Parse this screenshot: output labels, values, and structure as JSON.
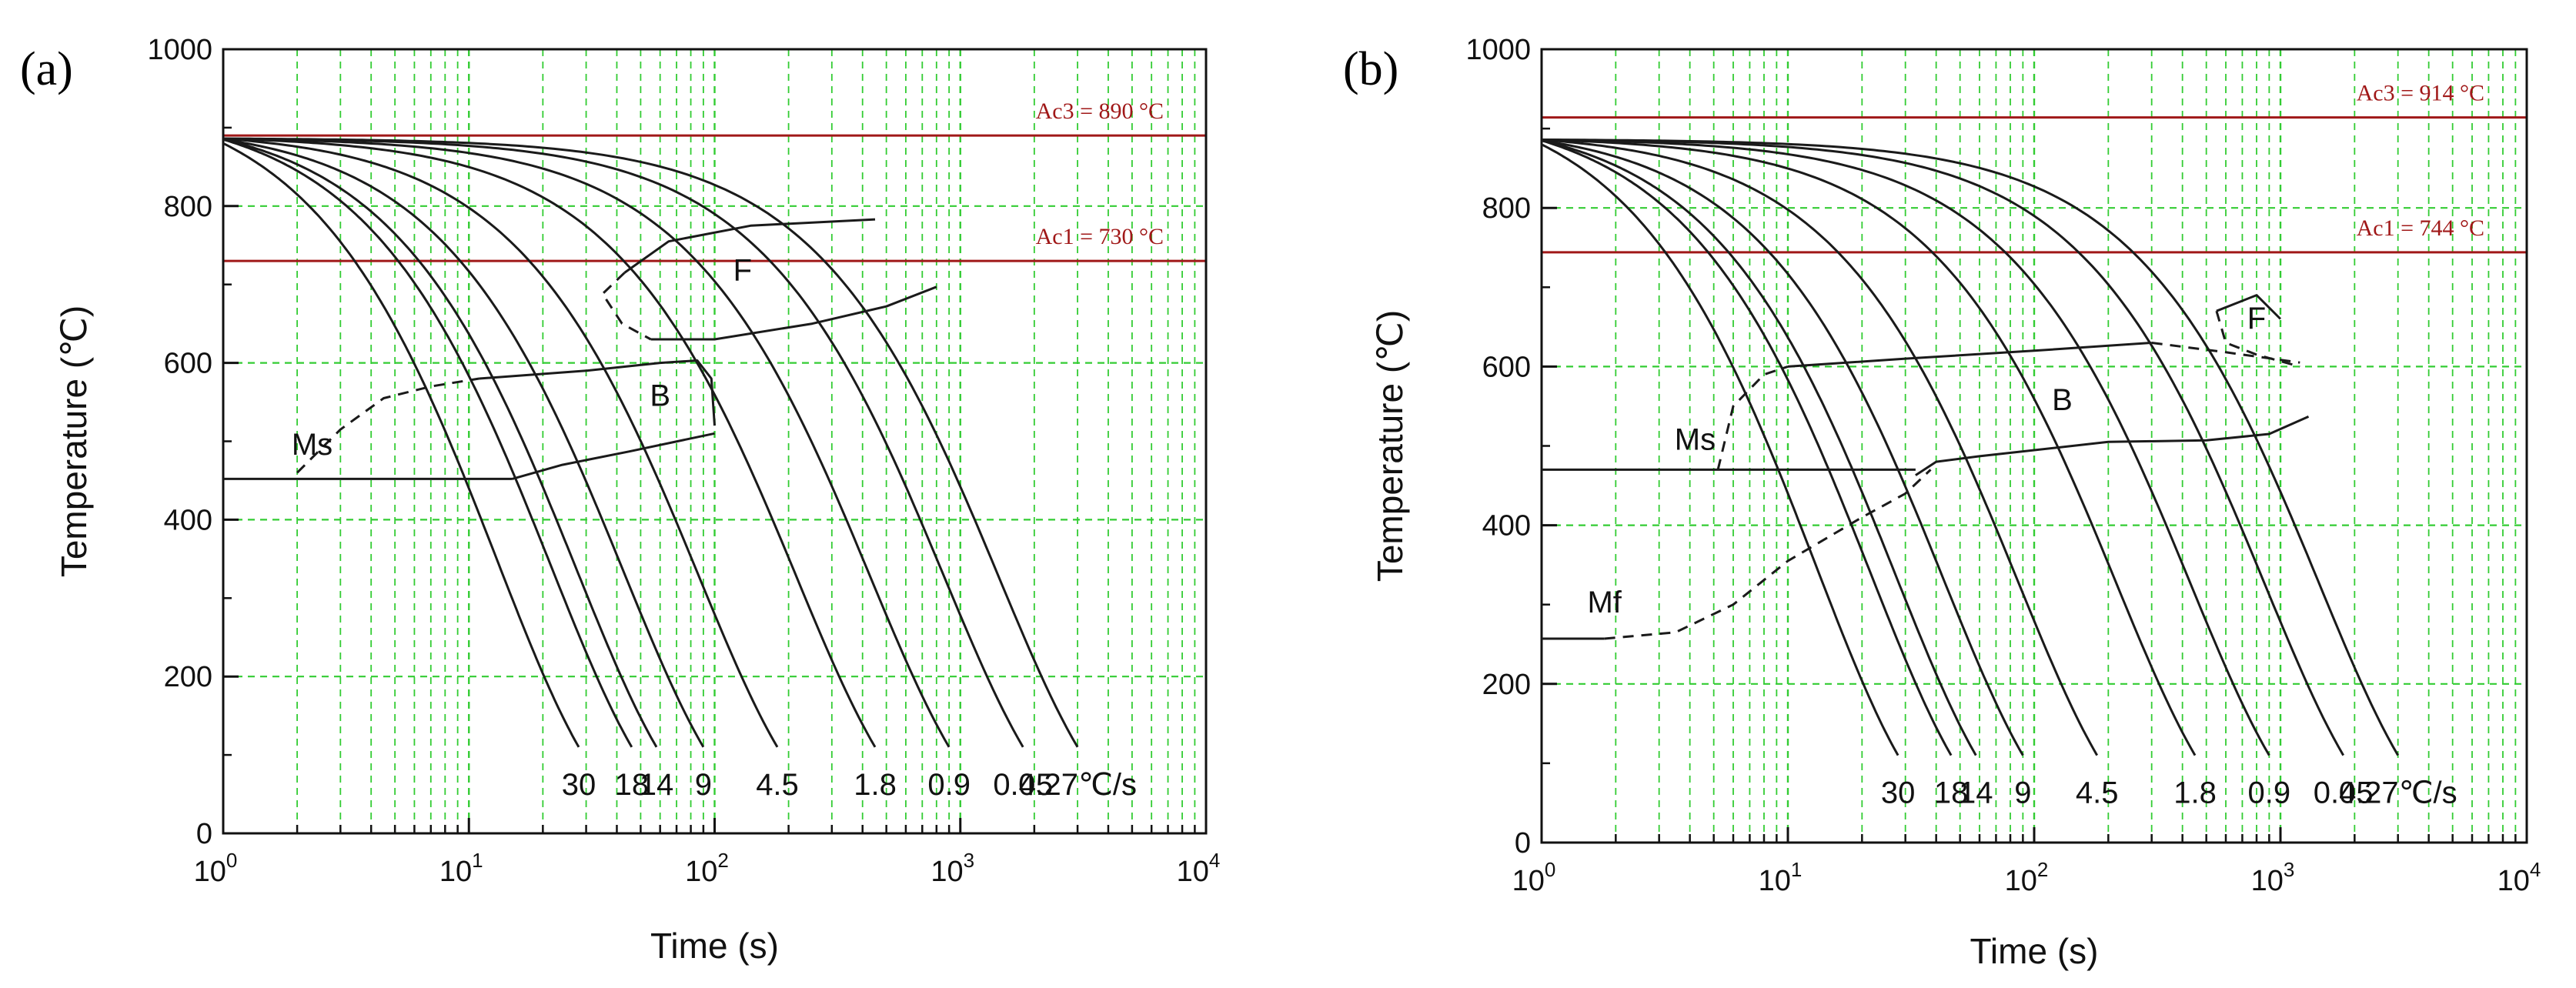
{
  "figure": {
    "colors": {
      "grid": "#33cc33",
      "axis": "#111111",
      "curve": "#1a1a1a",
      "ref_line": "#a01818",
      "background": "#ffffff"
    }
  },
  "chart_data": [
    {
      "panel_label": "(a)",
      "type": "line",
      "xscale": "log",
      "xlim": [
        1,
        10000
      ],
      "ylim": [
        0,
        1000
      ],
      "xlabel": "Time (s)",
      "ylabel": "Temperature (℃)",
      "x_ticks": [
        {
          "base": "10",
          "exp": "0",
          "value": 1
        },
        {
          "base": "10",
          "exp": "1",
          "value": 10
        },
        {
          "base": "10",
          "exp": "2",
          "value": 100
        },
        {
          "base": "10",
          "exp": "3",
          "value": 1000
        },
        {
          "base": "10",
          "exp": "4",
          "value": 10000
        }
      ],
      "y_ticks": [
        0,
        200,
        400,
        600,
        800,
        1000
      ],
      "grid": true,
      "reference_lines": [
        {
          "label": "Ac3 = 890 °C",
          "y": 890
        },
        {
          "label": "Ac1 = 730 °C",
          "y": 730
        }
      ],
      "cooling_curves": [
        {
          "label": "30",
          "start_T": 880,
          "t_end": 28
        },
        {
          "label": "18",
          "start_T": 885,
          "t_end": 46
        },
        {
          "label": "14",
          "start_T": 885,
          "t_end": 58
        },
        {
          "label": "9",
          "start_T": 885,
          "t_end": 90
        },
        {
          "label": "4.5",
          "start_T": 886,
          "t_end": 180
        },
        {
          "label": "1.8",
          "start_T": 886,
          "t_end": 450
        },
        {
          "label": "0.9",
          "start_T": 886,
          "t_end": 900
        },
        {
          "label": "0.45",
          "start_T": 886,
          "t_end": 1800
        },
        {
          "label": "0.27℃/s",
          "start_T": 886,
          "t_end": 3000
        }
      ],
      "curve_end_T": 110,
      "regions": [
        {
          "label": "F",
          "t": 130,
          "T": 705
        },
        {
          "label": "B",
          "t": 60,
          "T": 545
        },
        {
          "label": "Ms",
          "t": 2.3,
          "T": 483
        }
      ],
      "transformation_lines": [
        {
          "name": "ferrite-start",
          "style": "solid",
          "points": [
            [
              43,
              715
            ],
            [
              65,
              755
            ],
            [
              140,
              775
            ],
            [
              450,
              783
            ]
          ]
        },
        {
          "name": "ferrite-start-dashed",
          "style": "dashed",
          "points": [
            [
              43,
              715
            ],
            [
              35,
              688
            ],
            [
              42,
              650
            ],
            [
              55,
              630
            ]
          ]
        },
        {
          "name": "ferrite-finish",
          "style": "solid",
          "points": [
            [
              55,
              630
            ],
            [
              100,
              630
            ],
            [
              250,
              650
            ],
            [
              500,
              672
            ],
            [
              800,
              697
            ]
          ]
        },
        {
          "name": "bainite-start",
          "style": "solid",
          "points": [
            [
              11,
              580
            ],
            [
              30,
              590
            ],
            [
              60,
              600
            ],
            [
              85,
              603
            ],
            [
              97,
              580
            ],
            [
              100,
              520
            ]
          ]
        },
        {
          "name": "bainite-finish",
          "style": "solid",
          "points": [
            [
              15,
              452
            ],
            [
              24,
              470
            ],
            [
              45,
              487
            ],
            [
              100,
              510
            ]
          ]
        },
        {
          "name": "ms",
          "style": "solid",
          "points": [
            [
              1,
              452
            ],
            [
              15,
              452
            ]
          ]
        },
        {
          "name": "ms-dashed",
          "style": "dashed",
          "points": [
            [
              2.0,
              460
            ],
            [
              3.0,
              515
            ],
            [
              4.5,
              555
            ],
            [
              7,
              570
            ],
            [
              11,
              580
            ]
          ]
        }
      ]
    },
    {
      "panel_label": "(b)",
      "type": "line",
      "xscale": "log",
      "xlim": [
        1,
        10000
      ],
      "ylim": [
        0,
        1000
      ],
      "xlabel": "Time (s)",
      "ylabel": "Temperature (℃)",
      "x_ticks": [
        {
          "base": "10",
          "exp": "0",
          "value": 1
        },
        {
          "base": "10",
          "exp": "1",
          "value": 10
        },
        {
          "base": "10",
          "exp": "2",
          "value": 100
        },
        {
          "base": "10",
          "exp": "3",
          "value": 1000
        },
        {
          "base": "10",
          "exp": "4",
          "value": 10000
        }
      ],
      "y_ticks": [
        0,
        200,
        400,
        600,
        800,
        1000
      ],
      "grid": true,
      "reference_lines": [
        {
          "label": "Ac3 = 914 °C",
          "y": 914
        },
        {
          "label": "Ac1 = 744 °C",
          "y": 744
        }
      ],
      "cooling_curves": [
        {
          "label": "30",
          "start_T": 880,
          "t_end": 28
        },
        {
          "label": "18",
          "start_T": 885,
          "t_end": 46
        },
        {
          "label": "14",
          "start_T": 885,
          "t_end": 58
        },
        {
          "label": "9",
          "start_T": 885,
          "t_end": 90
        },
        {
          "label": "4.5",
          "start_T": 886,
          "t_end": 180
        },
        {
          "label": "1.8",
          "start_T": 886,
          "t_end": 450
        },
        {
          "label": "0.9",
          "start_T": 886,
          "t_end": 900
        },
        {
          "label": "0.45",
          "start_T": 886,
          "t_end": 1800
        },
        {
          "label": "0.27℃/s",
          "start_T": 886,
          "t_end": 3000
        }
      ],
      "curve_end_T": 110,
      "regions": [
        {
          "label": "F",
          "t": 800,
          "T": 648
        },
        {
          "label": "B",
          "t": 130,
          "T": 545
        },
        {
          "label": "Ms",
          "t": 4.2,
          "T": 495
        },
        {
          "label": "Mf",
          "t": 1.8,
          "T": 290
        }
      ],
      "transformation_lines": [
        {
          "name": "ferrite-start",
          "style": "solid",
          "points": [
            [
              550,
              670
            ],
            [
              800,
              690
            ],
            [
              1000,
              660
            ]
          ]
        },
        {
          "name": "ferrite-dashed",
          "style": "dashed",
          "points": [
            [
              550,
              670
            ],
            [
              600,
              630
            ],
            [
              800,
              615
            ],
            [
              1200,
              600
            ]
          ]
        },
        {
          "name": "bainite-start",
          "style": "solid",
          "points": [
            [
              10,
              600
            ],
            [
              30,
              610
            ],
            [
              100,
              620
            ],
            [
              300,
              630
            ]
          ]
        },
        {
          "name": "bainite-start-dashed",
          "style": "dashed",
          "points": [
            [
              300,
              630
            ],
            [
              600,
              618
            ],
            [
              1200,
              605
            ]
          ]
        },
        {
          "name": "bainite-start-dashed-low",
          "style": "dashed",
          "points": [
            [
              5.2,
              470
            ],
            [
              6,
              550
            ],
            [
              8,
              590
            ],
            [
              10,
              600
            ]
          ]
        },
        {
          "name": "bainite-finish",
          "style": "solid",
          "points": [
            [
              33,
              463
            ],
            [
              40,
              480
            ],
            [
              60,
              487
            ],
            [
              200,
              505
            ],
            [
              500,
              507
            ],
            [
              900,
              515
            ],
            [
              1300,
              537
            ]
          ]
        },
        {
          "name": "ms",
          "style": "solid",
          "points": [
            [
              1,
              470
            ],
            [
              33,
              470
            ]
          ]
        },
        {
          "name": "mf",
          "style": "solid",
          "points": [
            [
              1,
              257
            ],
            [
              1.8,
              257
            ]
          ]
        },
        {
          "name": "mf-dashed",
          "style": "dashed",
          "points": [
            [
              1.8,
              257
            ],
            [
              3.5,
              265
            ],
            [
              6,
              300
            ],
            [
              10,
              355
            ],
            [
              20,
              410
            ],
            [
              30,
              440
            ],
            [
              38,
              470
            ]
          ]
        }
      ]
    }
  ]
}
